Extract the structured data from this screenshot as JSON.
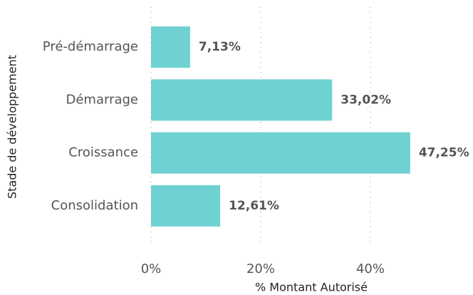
{
  "chart_data": {
    "type": "bar",
    "orientation": "horizontal",
    "x_label": "% Montant Autorisé",
    "y_label": "Stade de développement",
    "categories": [
      "Pré-démarrage",
      "Démarrage",
      "Croissance",
      "Consolidation"
    ],
    "values": [
      7.13,
      33.02,
      47.25,
      12.61
    ],
    "value_labels": [
      "7,13%",
      "33,02%",
      "47,25%",
      "12,61%"
    ],
    "color": "#6fd1d1",
    "xlim": [
      0,
      50
    ],
    "xticks": [
      {
        "value": 0,
        "label": "0%"
      },
      {
        "value": 20,
        "label": "20%"
      },
      {
        "value": 40,
        "label": "40%"
      }
    ],
    "grid": true
  }
}
